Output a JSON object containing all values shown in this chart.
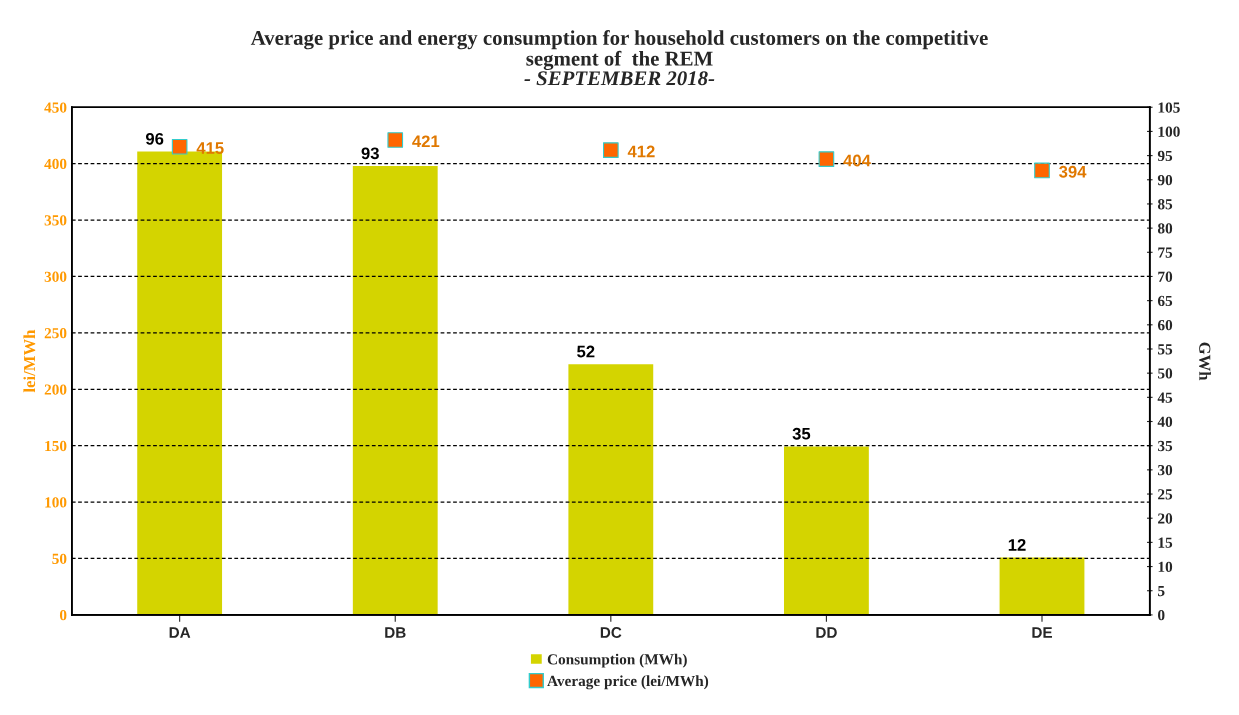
{
  "chart_data": {
    "type": "bar",
    "title": "Average price and energy consumption for household customers on the competitive\nsegment of  the REM",
    "subtitle": "- SEPTEMBER 2018-",
    "ylabel": "lei/MWh",
    "y2label": "GWh",
    "categories": [
      "DA",
      "DB",
      "DC",
      "DD",
      "DE"
    ],
    "series": [
      {
        "name": "Consumption (MWh)",
        "type": "bar",
        "axis": "y2",
        "color": "#d4d400",
        "values": [
          96,
          93,
          52,
          35,
          12
        ]
      },
      {
        "name": "Average price (lei/MWh)",
        "type": "scatter",
        "axis": "y",
        "color": "#ff6600",
        "marker": "square",
        "values": [
          415,
          421,
          412,
          404,
          394
        ]
      }
    ],
    "ylim": [
      0,
      450
    ],
    "yticks": [
      0,
      50,
      100,
      150,
      200,
      250,
      300,
      350,
      400,
      450
    ],
    "y2lim": [
      0,
      105
    ],
    "y2ticks": [
      0,
      5,
      10,
      15,
      20,
      25,
      30,
      35,
      40,
      45,
      50,
      55,
      60,
      65,
      70,
      75,
      80,
      85,
      90,
      95,
      100,
      105
    ],
    "data_labels": true,
    "grid": "y",
    "legend": "bottom"
  }
}
